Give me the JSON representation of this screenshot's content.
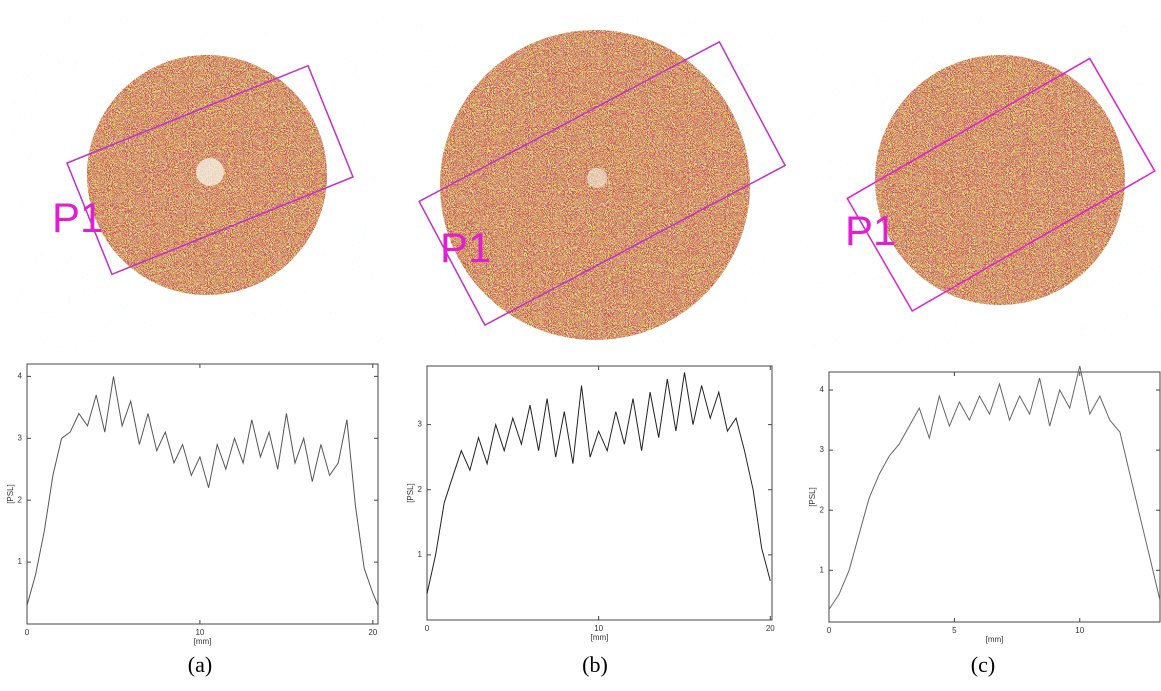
{
  "panels": [
    {
      "label": "(a)",
      "marker": "P1"
    },
    {
      "label": "(b)",
      "marker": "P1"
    },
    {
      "label": "(c)",
      "marker": "P1"
    }
  ],
  "chart_data": [
    {
      "type": "line",
      "xlabel": "[mm]",
      "ylabel": "[PSL]",
      "x": [
        0,
        0.5,
        1,
        1.5,
        2,
        2.5,
        3,
        3.5,
        4,
        4.5,
        5,
        5.5,
        6,
        6.5,
        7,
        7.5,
        8,
        8.5,
        9,
        9.5,
        10,
        10.5,
        11,
        11.5,
        12,
        12.5,
        13,
        13.5,
        14,
        14.5,
        15,
        15.5,
        16,
        16.5,
        17,
        17.5,
        18,
        18.5,
        19,
        19.5,
        20,
        20.3
      ],
      "series": [
        {
          "color": "#555555",
          "values": [
            0.3,
            0.8,
            1.5,
            2.4,
            3.0,
            3.1,
            3.4,
            3.2,
            3.7,
            3.1,
            4.0,
            3.2,
            3.6,
            2.9,
            3.4,
            2.8,
            3.1,
            2.6,
            2.9,
            2.4,
            2.7,
            2.2,
            2.9,
            2.5,
            3.0,
            2.6,
            3.3,
            2.7,
            3.1,
            2.5,
            3.4,
            2.6,
            3.0,
            2.3,
            2.9,
            2.4,
            2.6,
            3.3,
            1.9,
            0.9,
            0.5,
            0.3
          ]
        }
      ],
      "xlim": [
        0,
        20.3
      ],
      "ylim": [
        0,
        4.2
      ],
      "xticks": [
        0,
        10,
        20
      ],
      "yticks": [
        1,
        2,
        3,
        4
      ]
    },
    {
      "type": "line",
      "xlabel": "[mm]",
      "ylabel": "[PSL]",
      "x": [
        0,
        0.5,
        1,
        1.5,
        2,
        2.5,
        3,
        3.5,
        4,
        4.5,
        5,
        5.5,
        6,
        6.5,
        7,
        7.5,
        8,
        8.5,
        9,
        9.5,
        10,
        10.5,
        11,
        11.5,
        12,
        12.5,
        13,
        13.5,
        14,
        14.5,
        15,
        15.5,
        16,
        16.5,
        17,
        17.5,
        18,
        18.5,
        19,
        19.5,
        20
      ],
      "series": [
        {
          "color": "#222222",
          "values": [
            0.4,
            1.0,
            1.8,
            2.2,
            2.6,
            2.3,
            2.8,
            2.4,
            3.0,
            2.6,
            3.1,
            2.7,
            3.3,
            2.6,
            3.4,
            2.5,
            3.2,
            2.4,
            3.6,
            2.5,
            2.9,
            2.6,
            3.2,
            2.7,
            3.4,
            2.6,
            3.5,
            2.8,
            3.7,
            2.9,
            3.8,
            3.0,
            3.6,
            3.1,
            3.5,
            2.9,
            3.1,
            2.6,
            2.0,
            1.1,
            0.6
          ]
        }
      ],
      "xlim": [
        0,
        20.1
      ],
      "ylim": [
        0,
        3.9
      ],
      "xticks": [
        0,
        10,
        20
      ],
      "yticks": [
        1,
        2,
        3
      ]
    },
    {
      "type": "line",
      "xlabel": "[mm]",
      "ylabel": "[PSL]",
      "x": [
        0,
        0.4,
        0.8,
        1.2,
        1.6,
        2,
        2.4,
        2.8,
        3.2,
        3.6,
        4,
        4.4,
        4.8,
        5.2,
        5.6,
        6,
        6.4,
        6.8,
        7.2,
        7.6,
        8,
        8.4,
        8.8,
        9.2,
        9.6,
        10,
        10.4,
        10.8,
        11.2,
        11.6,
        12,
        12.4,
        12.8,
        13.2
      ],
      "series": [
        {
          "color": "#666666",
          "values": [
            0.35,
            0.6,
            1.0,
            1.6,
            2.2,
            2.6,
            2.9,
            3.1,
            3.4,
            3.7,
            3.2,
            3.9,
            3.4,
            3.8,
            3.5,
            3.9,
            3.6,
            4.1,
            3.5,
            3.9,
            3.6,
            4.2,
            3.4,
            4.0,
            3.7,
            4.4,
            3.6,
            3.9,
            3.5,
            3.3,
            2.6,
            1.9,
            1.2,
            0.5
          ]
        }
      ],
      "xlim": [
        0,
        13.2
      ],
      "ylim": [
        0.14,
        4.3
      ],
      "xticks": [
        0,
        5,
        10
      ],
      "yticks": [
        1,
        2,
        3,
        4
      ]
    }
  ]
}
